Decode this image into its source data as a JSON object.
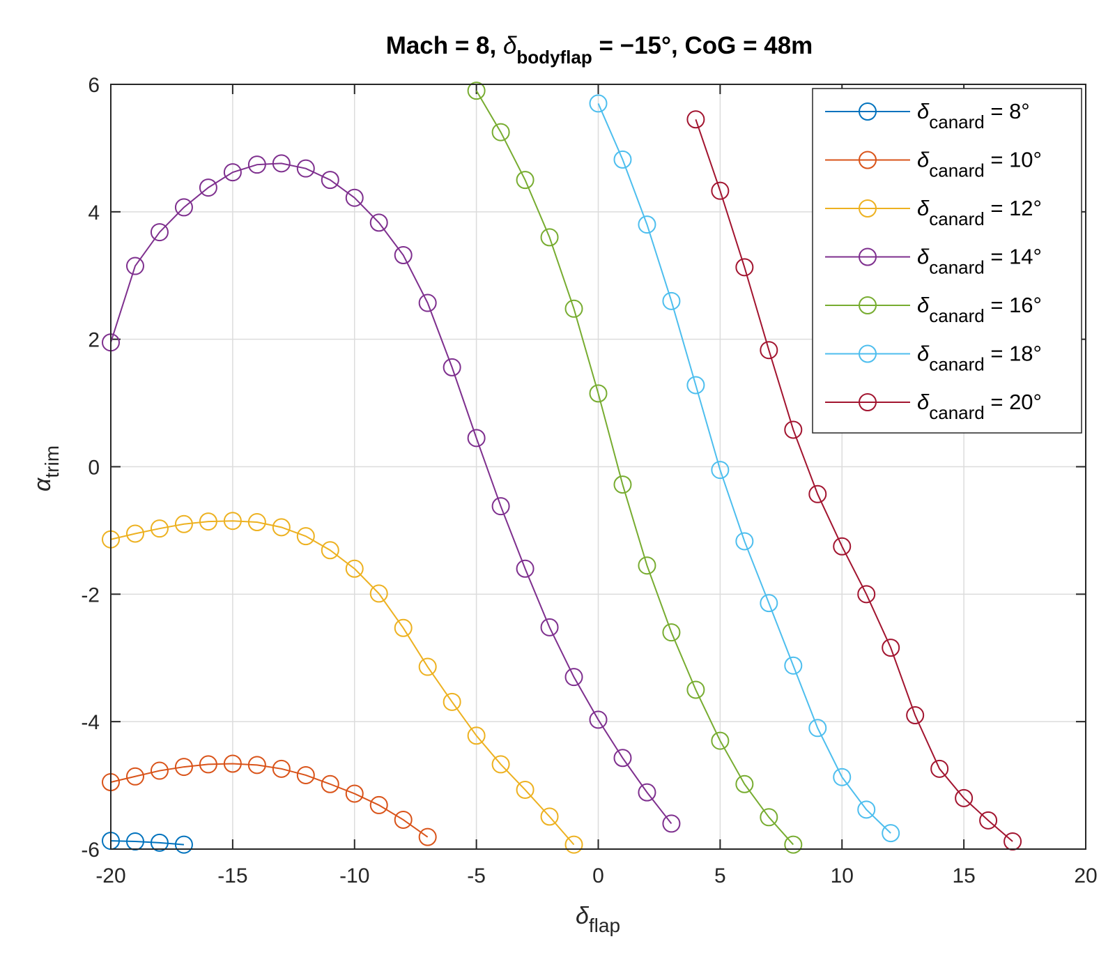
{
  "chart_data": {
    "type": "line",
    "title": {
      "prefix": "Mach = 8, ",
      "symbol": "δ",
      "subscript": "bodyflap",
      "suffix": " = −15°, CoG = 48m"
    },
    "xlabel": {
      "symbol": "δ",
      "subscript": "flap"
    },
    "ylabel": {
      "symbol": "α",
      "subscript": "trim"
    },
    "xlim": [
      -20,
      20
    ],
    "ylim": [
      -6,
      6
    ],
    "xticks": [
      -20,
      -15,
      -10,
      -5,
      0,
      5,
      10,
      15,
      20
    ],
    "yticks": [
      -6,
      -4,
      -2,
      0,
      2,
      4,
      6
    ],
    "grid": true,
    "legend_position": "top-right",
    "legend_symbol": "δ",
    "legend_subscript": "canard",
    "series": [
      {
        "name": "δcanard = 8°",
        "legend_suffix": " = 8°",
        "color": "#0072BD",
        "x": [
          -20,
          -19,
          -18,
          -17
        ],
        "y": [
          -5.87,
          -5.88,
          -5.9,
          -5.93
        ]
      },
      {
        "name": "δcanard = 10°",
        "legend_suffix": " = 10°",
        "color": "#D95319",
        "x": [
          -20,
          -19,
          -18,
          -17,
          -16,
          -15,
          -14,
          -13,
          -12,
          -11,
          -10,
          -9,
          -8,
          -7
        ],
        "y": [
          -4.95,
          -4.86,
          -4.77,
          -4.71,
          -4.67,
          -4.66,
          -4.68,
          -4.74,
          -4.84,
          -4.98,
          -5.13,
          -5.31,
          -5.54,
          -5.81
        ]
      },
      {
        "name": "δcanard = 12°",
        "legend_suffix": " = 12°",
        "color": "#EDB120",
        "x": [
          -20,
          -19,
          -18,
          -17,
          -16,
          -15,
          -14,
          -13,
          -12,
          -11,
          -10,
          -9,
          -8,
          -7,
          -6,
          -5,
          -4,
          -3,
          -2,
          -1
        ],
        "y": [
          -1.14,
          -1.05,
          -0.97,
          -0.9,
          -0.86,
          -0.85,
          -0.87,
          -0.95,
          -1.09,
          -1.31,
          -1.6,
          -1.99,
          -2.53,
          -3.14,
          -3.69,
          -4.22,
          -4.67,
          -5.07,
          -5.49,
          -5.93
        ]
      },
      {
        "name": "δcanard = 14°",
        "legend_suffix": " = 14°",
        "color": "#7E2F8E",
        "x": [
          -20,
          -19,
          -18,
          -17,
          -16,
          -15,
          -14,
          -13,
          -12,
          -11,
          -10,
          -9,
          -8,
          -7,
          -6,
          -5,
          -4,
          -3,
          -2,
          -1,
          0,
          1,
          2,
          3
        ],
        "y": [
          1.95,
          3.15,
          3.68,
          4.07,
          4.38,
          4.62,
          4.74,
          4.76,
          4.68,
          4.5,
          4.22,
          3.83,
          3.32,
          2.57,
          1.56,
          0.45,
          -0.62,
          -1.6,
          -2.52,
          -3.3,
          -3.97,
          -4.57,
          -5.11,
          -5.6
        ]
      },
      {
        "name": "δcanard = 16°",
        "legend_suffix": " = 16°",
        "color": "#77AC30",
        "x": [
          -5,
          -4,
          -3,
          -2,
          -1,
          0,
          1,
          2,
          3,
          4,
          5,
          6,
          7,
          8
        ],
        "y": [
          5.9,
          5.25,
          4.5,
          3.6,
          2.48,
          1.15,
          -0.28,
          -1.55,
          -2.6,
          -3.5,
          -4.3,
          -4.98,
          -5.5,
          -5.93
        ]
      },
      {
        "name": "δcanard = 18°",
        "legend_suffix": " = 18°",
        "color": "#4DBEEE",
        "x": [
          0,
          1,
          2,
          3,
          4,
          5,
          6,
          7,
          8,
          9,
          10,
          11,
          12
        ],
        "y": [
          5.7,
          4.82,
          3.8,
          2.6,
          1.28,
          -0.05,
          -1.17,
          -2.14,
          -3.12,
          -4.1,
          -4.87,
          -5.38,
          -5.75
        ]
      },
      {
        "name": "δcanard = 20°",
        "legend_suffix": " = 20°",
        "color": "#A2142F",
        "x": [
          4,
          5,
          6,
          7,
          8,
          9,
          10,
          11,
          12,
          13,
          14,
          15,
          16,
          17
        ],
        "y": [
          5.45,
          4.33,
          3.13,
          1.83,
          0.58,
          -0.43,
          -1.25,
          -2.0,
          -2.84,
          -3.9,
          -4.74,
          -5.2,
          -5.55,
          -5.88
        ]
      }
    ]
  }
}
